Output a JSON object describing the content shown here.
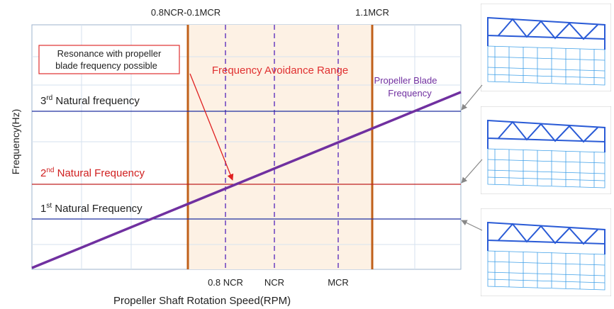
{
  "top_labels": [
    "0.8NCR-0.1MCR",
    "1.1MCR"
  ],
  "bottom_labels": [
    "0.8 NCR",
    "NCR",
    "MCR"
  ],
  "x_axis_label": "Propeller Shaft Rotation Speed(RPM)",
  "y_axis_label": "Frequency(Hz)",
  "annotation": [
    "Resonance with propeller",
    "blade frequency possible"
  ],
  "region_label": "Frequency Avoidance Range",
  "line_label": [
    "Propeller Blade",
    "Frequency"
  ],
  "natural_frequencies": [
    {
      "num": "3",
      "sup": "rd",
      "label": " Natural frequency"
    },
    {
      "num": "2",
      "sup": "nd",
      "label": " Natural Frequency"
    },
    {
      "num": "1",
      "sup": "st",
      "label": " Natural Frequency"
    }
  ]
}
